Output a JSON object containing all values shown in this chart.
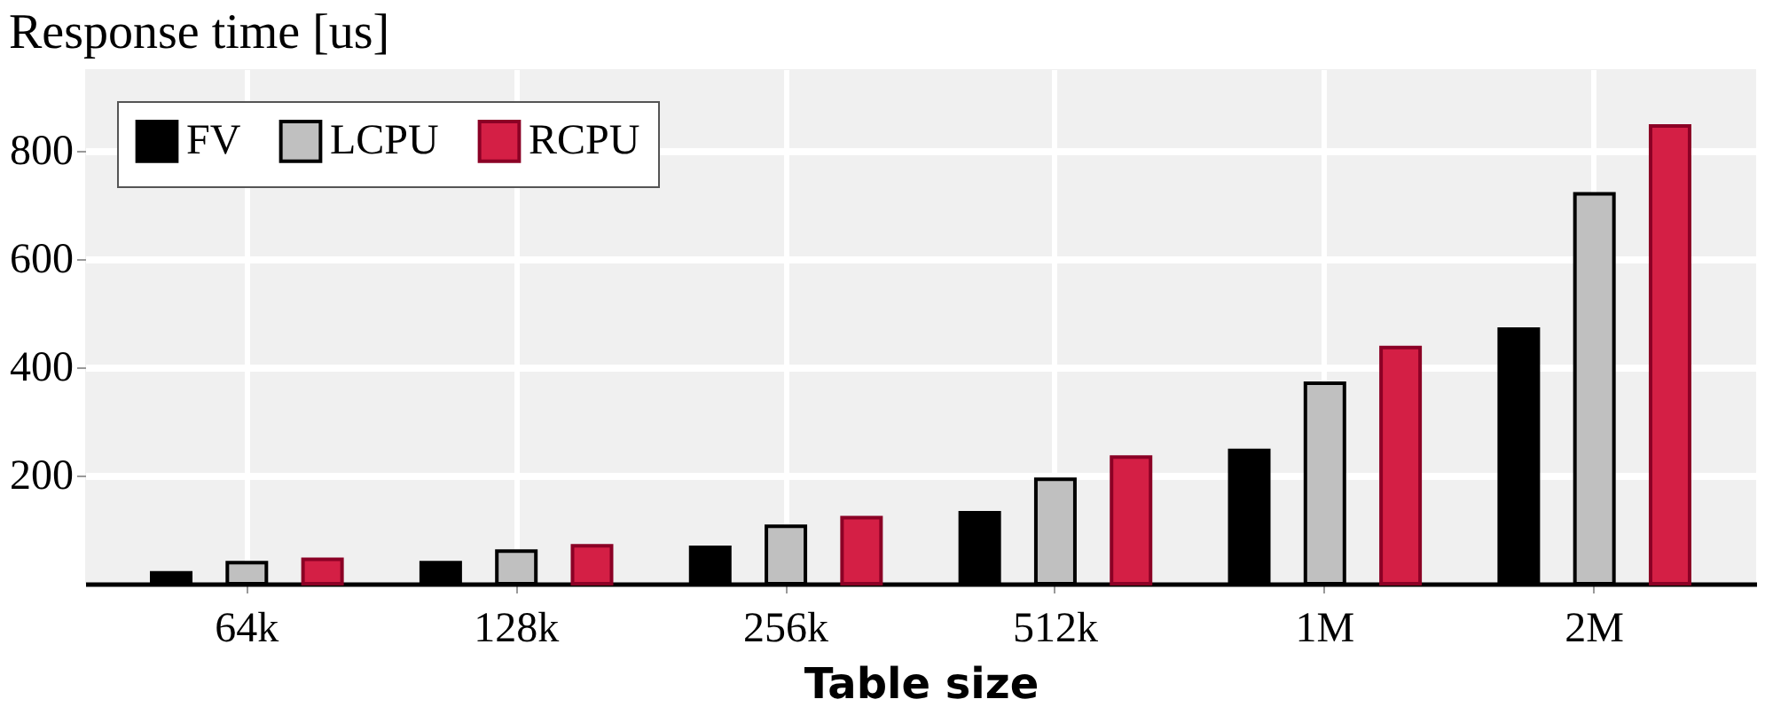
{
  "chart_data": {
    "type": "bar",
    "title": "Response time [us]",
    "xlabel": "Table size",
    "categories": [
      "64k",
      "128k",
      "256k",
      "512k",
      "1M",
      "2M"
    ],
    "series": [
      {
        "name": "FV",
        "color": "#000000",
        "values": [
          20,
          39,
          67,
          131,
          246,
          470
        ]
      },
      {
        "name": "LCPU",
        "color": "#c0c0c0",
        "values": [
          39,
          60,
          106,
          193,
          370,
          720
        ]
      },
      {
        "name": "RCPU",
        "color": "#d41f45",
        "values": [
          45,
          70,
          122,
          234,
          436,
          845
        ]
      }
    ],
    "ylim": [
      0,
      950
    ],
    "yticks": [
      200,
      400,
      600,
      800
    ],
    "grid": true,
    "legend": "top left"
  }
}
